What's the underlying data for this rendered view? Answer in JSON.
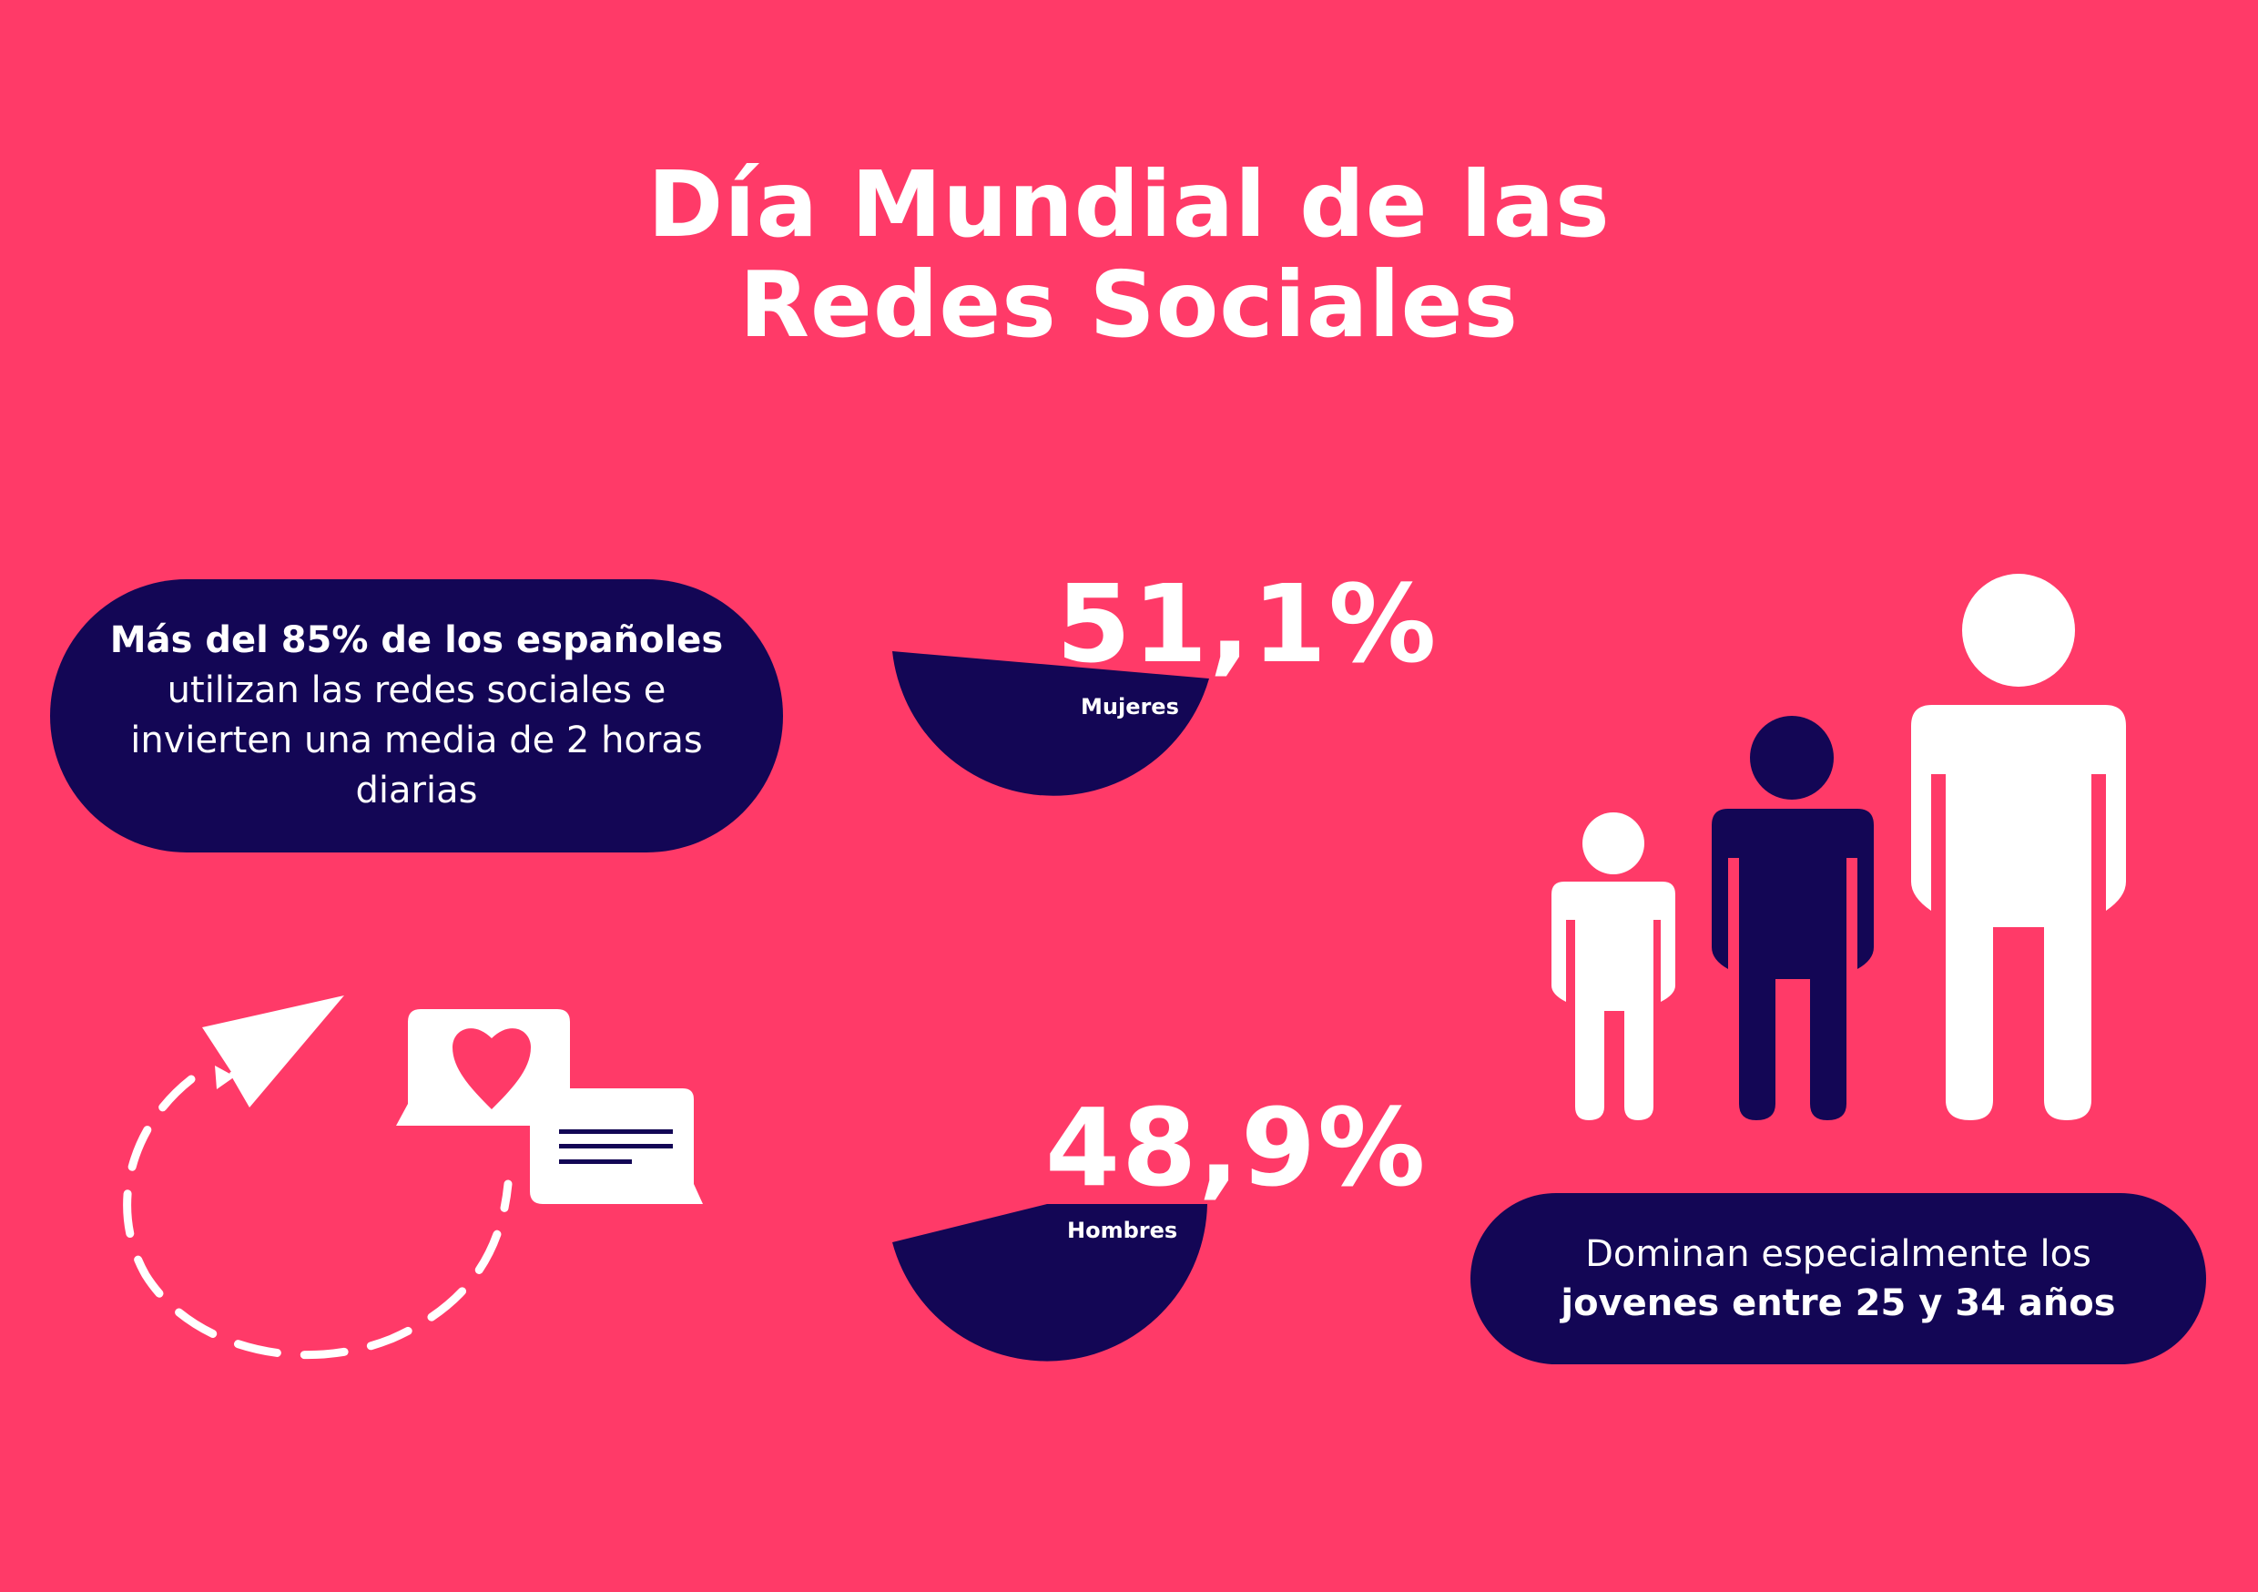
{
  "title": {
    "line1": "Día Mundial de las",
    "line2": "Redes Sociales"
  },
  "intro": {
    "bold_part": "Más del 85% de los españoles",
    "regular_part": "utilizan las redes sociales e invierten una media de 2 horas diarias"
  },
  "women": {
    "percent": "51,1%",
    "label": "Mujeres",
    "share": 0.511
  },
  "men": {
    "percent": "48,9%",
    "label": "Hombres",
    "share": 0.489
  },
  "youth": {
    "regular_part": "Dominan especialmente los",
    "bold_part": "jovenes entre 25 y 34 años"
  },
  "colors": {
    "background": "#FF3A68",
    "navy": "#130655",
    "white": "#FFFFFF"
  },
  "icons": [
    "paper-plane-icon",
    "dashed-path-icon",
    "heart-chat-bubble-icon",
    "text-chat-bubble-icon",
    "child-figure-icon",
    "teen-figure-icon",
    "adult-figure-icon"
  ]
}
